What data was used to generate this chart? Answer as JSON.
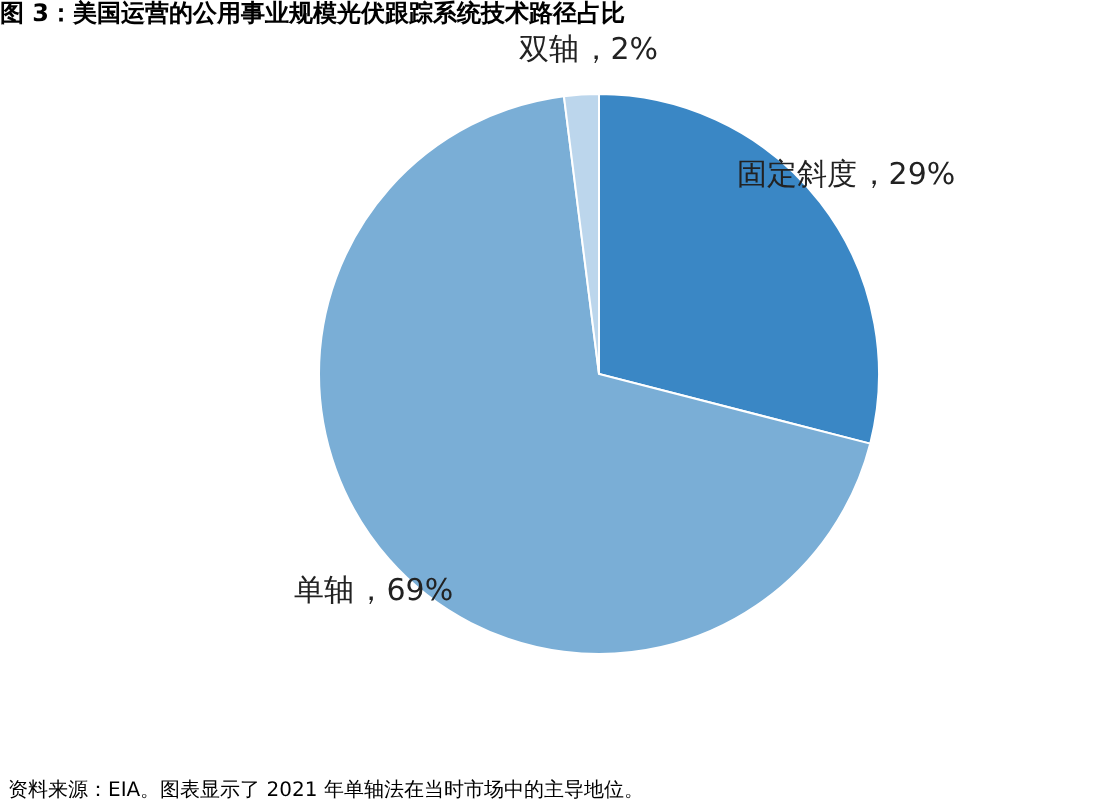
{
  "chart_data": {
    "type": "pie",
    "title": "图 3：美国运营的公用事业规模光伏跟踪系统技术路径占比",
    "categories": [
      "固定斜度",
      "单轴",
      "双轴"
    ],
    "values": [
      29,
      69,
      2
    ],
    "colors": [
      "#3a87c5",
      "#7aaed6",
      "#bcd6ec"
    ],
    "value_labels": [
      "，29%",
      "，69%",
      "，2%"
    ],
    "legend": false,
    "annotations": [
      "资料来源：EIA。图表显示了 2021 年单轴法在当时市场中的主导地位。"
    ]
  }
}
